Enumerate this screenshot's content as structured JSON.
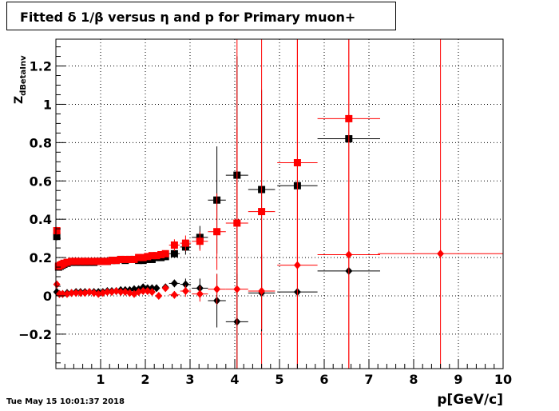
{
  "title": "Fitted δ 1/β versus η and p for Primary muon+",
  "timestamp": "Tue May 15 10:01:37 2018",
  "chart_data": {
    "type": "scatter",
    "title": "Fitted δ 1/β versus η and p for Primary muon+",
    "xlabel": "p[GeV/c]",
    "ylabel_main": "Z",
    "ylabel_sub": "dBetaInv",
    "xlim": [
      0.0,
      10.0
    ],
    "ylim": [
      -0.38,
      1.34
    ],
    "grid": true,
    "x_ticks": [
      1,
      2,
      3,
      4,
      5,
      6,
      7,
      8,
      9,
      10
    ],
    "x_tick_labels": [
      "1",
      "2",
      "3",
      "4",
      "5",
      "6",
      "7",
      "8",
      "9",
      "10"
    ],
    "y_ticks": [
      -0.2,
      0,
      0.2,
      0.4,
      0.6,
      0.8,
      1,
      1.2
    ],
    "y_tick_labels": [
      "−0.2",
      "0",
      "0.2",
      "0.4",
      "0.6",
      "0.8",
      "1",
      "1.2"
    ],
    "colors": {
      "black": "#000000",
      "red": "#ff0000"
    },
    "series": [
      {
        "marker": "square",
        "color": "#000000",
        "points": [
          {
            "x": 0.02,
            "y": 0.31,
            "ex": 0.02,
            "ey": 0.02
          },
          {
            "x": 0.06,
            "y": 0.15,
            "ex": 0.02,
            "ey": 0.01
          },
          {
            "x": 0.1,
            "y": 0.155,
            "ex": 0.02,
            "ey": 0.01
          },
          {
            "x": 0.14,
            "y": 0.16,
            "ex": 0.02,
            "ey": 0.01
          },
          {
            "x": 0.18,
            "y": 0.165,
            "ex": 0.02,
            "ey": 0.01
          },
          {
            "x": 0.25,
            "y": 0.17,
            "ex": 0.03,
            "ey": 0.01
          },
          {
            "x": 0.35,
            "y": 0.175,
            "ex": 0.05,
            "ey": 0.01
          },
          {
            "x": 0.45,
            "y": 0.175,
            "ex": 0.05,
            "ey": 0.01
          },
          {
            "x": 0.55,
            "y": 0.175,
            "ex": 0.05,
            "ey": 0.01
          },
          {
            "x": 0.65,
            "y": 0.175,
            "ex": 0.05,
            "ey": 0.01
          },
          {
            "x": 0.75,
            "y": 0.175,
            "ex": 0.05,
            "ey": 0.01
          },
          {
            "x": 0.85,
            "y": 0.175,
            "ex": 0.05,
            "ey": 0.01
          },
          {
            "x": 0.95,
            "y": 0.18,
            "ex": 0.05,
            "ey": 0.01
          },
          {
            "x": 1.05,
            "y": 0.18,
            "ex": 0.05,
            "ey": 0.01
          },
          {
            "x": 1.15,
            "y": 0.18,
            "ex": 0.05,
            "ey": 0.01
          },
          {
            "x": 1.25,
            "y": 0.185,
            "ex": 0.05,
            "ey": 0.01
          },
          {
            "x": 1.35,
            "y": 0.185,
            "ex": 0.05,
            "ey": 0.01
          },
          {
            "x": 1.45,
            "y": 0.19,
            "ex": 0.05,
            "ey": 0.01
          },
          {
            "x": 1.55,
            "y": 0.185,
            "ex": 0.05,
            "ey": 0.01
          },
          {
            "x": 1.65,
            "y": 0.19,
            "ex": 0.05,
            "ey": 0.01
          },
          {
            "x": 1.75,
            "y": 0.19,
            "ex": 0.05,
            "ey": 0.01
          },
          {
            "x": 1.85,
            "y": 0.185,
            "ex": 0.05,
            "ey": 0.01
          },
          {
            "x": 1.95,
            "y": 0.185,
            "ex": 0.05,
            "ey": 0.01
          },
          {
            "x": 2.05,
            "y": 0.19,
            "ex": 0.05,
            "ey": 0.01
          },
          {
            "x": 2.15,
            "y": 0.19,
            "ex": 0.05,
            "ey": 0.01
          },
          {
            "x": 2.25,
            "y": 0.2,
            "ex": 0.05,
            "ey": 0.01
          },
          {
            "x": 2.35,
            "y": 0.2,
            "ex": 0.05,
            "ey": 0.01
          },
          {
            "x": 2.45,
            "y": 0.205,
            "ex": 0.05,
            "ey": 0.01
          },
          {
            "x": 2.65,
            "y": 0.22,
            "ex": 0.12,
            "ey": 0.02
          },
          {
            "x": 2.9,
            "y": 0.255,
            "ex": 0.12,
            "ey": 0.04
          },
          {
            "x": 3.22,
            "y": 0.305,
            "ex": 0.18,
            "ey": 0.06
          },
          {
            "x": 3.6,
            "y": 0.5,
            "ex": 0.2,
            "ey": 0.28
          },
          {
            "x": 4.05,
            "y": 0.63,
            "ex": 0.25,
            "ey": 0.62
          },
          {
            "x": 4.6,
            "y": 0.555,
            "ex": 0.3,
            "ey": 0.52
          },
          {
            "x": 5.4,
            "y": 0.575,
            "ex": 0.45,
            "ey": 0.0
          },
          {
            "x": 6.55,
            "y": 0.82,
            "ex": 0.7,
            "ey": 0.0
          }
        ]
      },
      {
        "marker": "square",
        "color": "#ff0000",
        "points": [
          {
            "x": 0.02,
            "y": 0.34,
            "ex": 0.02,
            "ey": 0.02
          },
          {
            "x": 0.06,
            "y": 0.155,
            "ex": 0.02,
            "ey": 0.01
          },
          {
            "x": 0.1,
            "y": 0.16,
            "ex": 0.02,
            "ey": 0.01
          },
          {
            "x": 0.14,
            "y": 0.165,
            "ex": 0.02,
            "ey": 0.01
          },
          {
            "x": 0.18,
            "y": 0.17,
            "ex": 0.02,
            "ey": 0.01
          },
          {
            "x": 0.25,
            "y": 0.175,
            "ex": 0.03,
            "ey": 0.01
          },
          {
            "x": 0.35,
            "y": 0.18,
            "ex": 0.05,
            "ey": 0.01
          },
          {
            "x": 0.45,
            "y": 0.18,
            "ex": 0.05,
            "ey": 0.01
          },
          {
            "x": 0.55,
            "y": 0.18,
            "ex": 0.05,
            "ey": 0.01
          },
          {
            "x": 0.65,
            "y": 0.18,
            "ex": 0.05,
            "ey": 0.01
          },
          {
            "x": 0.75,
            "y": 0.18,
            "ex": 0.05,
            "ey": 0.01
          },
          {
            "x": 0.85,
            "y": 0.18,
            "ex": 0.05,
            "ey": 0.01
          },
          {
            "x": 0.95,
            "y": 0.18,
            "ex": 0.05,
            "ey": 0.01
          },
          {
            "x": 1.05,
            "y": 0.18,
            "ex": 0.05,
            "ey": 0.01
          },
          {
            "x": 1.15,
            "y": 0.18,
            "ex": 0.05,
            "ey": 0.01
          },
          {
            "x": 1.25,
            "y": 0.185,
            "ex": 0.05,
            "ey": 0.01
          },
          {
            "x": 1.35,
            "y": 0.185,
            "ex": 0.05,
            "ey": 0.01
          },
          {
            "x": 1.45,
            "y": 0.19,
            "ex": 0.05,
            "ey": 0.01
          },
          {
            "x": 1.55,
            "y": 0.19,
            "ex": 0.05,
            "ey": 0.01
          },
          {
            "x": 1.65,
            "y": 0.19,
            "ex": 0.05,
            "ey": 0.01
          },
          {
            "x": 1.75,
            "y": 0.19,
            "ex": 0.05,
            "ey": 0.01
          },
          {
            "x": 1.85,
            "y": 0.2,
            "ex": 0.05,
            "ey": 0.01
          },
          {
            "x": 1.95,
            "y": 0.2,
            "ex": 0.05,
            "ey": 0.01
          },
          {
            "x": 2.05,
            "y": 0.205,
            "ex": 0.05,
            "ey": 0.01
          },
          {
            "x": 2.15,
            "y": 0.21,
            "ex": 0.05,
            "ey": 0.01
          },
          {
            "x": 2.25,
            "y": 0.21,
            "ex": 0.05,
            "ey": 0.01
          },
          {
            "x": 2.35,
            "y": 0.215,
            "ex": 0.05,
            "ey": 0.01
          },
          {
            "x": 2.45,
            "y": 0.22,
            "ex": 0.05,
            "ey": 0.01
          },
          {
            "x": 2.65,
            "y": 0.265,
            "ex": 0.12,
            "ey": 0.03
          },
          {
            "x": 2.9,
            "y": 0.275,
            "ex": 0.12,
            "ey": 0.04
          },
          {
            "x": 3.22,
            "y": 0.285,
            "ex": 0.18,
            "ey": 0.05
          },
          {
            "x": 3.6,
            "y": 0.335,
            "ex": 0.2,
            "ey": 0.2
          },
          {
            "x": 4.05,
            "y": 0.38,
            "ex": 0.25,
            "ey": 0.5
          },
          {
            "x": 4.6,
            "y": 0.44,
            "ex": 0.3,
            "ey": 1.0
          },
          {
            "x": 5.4,
            "y": 0.695,
            "ex": 0.45,
            "ey": 2.0
          },
          {
            "x": 6.55,
            "y": 0.925,
            "ex": 0.7,
            "ey": 2.0
          }
        ]
      },
      {
        "marker": "diamond",
        "color": "#000000",
        "points": [
          {
            "x": 0.02,
            "y": 0.02,
            "ex": 0.02,
            "ey": 0.01
          },
          {
            "x": 0.08,
            "y": 0.01,
            "ex": 0.02,
            "ey": 0.01
          },
          {
            "x": 0.15,
            "y": 0.01,
            "ex": 0.03,
            "ey": 0.01
          },
          {
            "x": 0.25,
            "y": 0.015,
            "ex": 0.05,
            "ey": 0.01
          },
          {
            "x": 0.35,
            "y": 0.015,
            "ex": 0.05,
            "ey": 0.01
          },
          {
            "x": 0.45,
            "y": 0.02,
            "ex": 0.05,
            "ey": 0.01
          },
          {
            "x": 0.55,
            "y": 0.02,
            "ex": 0.05,
            "ey": 0.01
          },
          {
            "x": 0.65,
            "y": 0.02,
            "ex": 0.05,
            "ey": 0.01
          },
          {
            "x": 0.75,
            "y": 0.02,
            "ex": 0.05,
            "ey": 0.01
          },
          {
            "x": 0.85,
            "y": 0.02,
            "ex": 0.05,
            "ey": 0.01
          },
          {
            "x": 0.95,
            "y": 0.02,
            "ex": 0.05,
            "ey": 0.01
          },
          {
            "x": 1.05,
            "y": 0.02,
            "ex": 0.05,
            "ey": 0.01
          },
          {
            "x": 1.15,
            "y": 0.025,
            "ex": 0.05,
            "ey": 0.01
          },
          {
            "x": 1.25,
            "y": 0.025,
            "ex": 0.05,
            "ey": 0.01
          },
          {
            "x": 1.35,
            "y": 0.025,
            "ex": 0.05,
            "ey": 0.01
          },
          {
            "x": 1.45,
            "y": 0.03,
            "ex": 0.05,
            "ey": 0.01
          },
          {
            "x": 1.55,
            "y": 0.03,
            "ex": 0.05,
            "ey": 0.01
          },
          {
            "x": 1.65,
            "y": 0.03,
            "ex": 0.05,
            "ey": 0.01
          },
          {
            "x": 1.75,
            "y": 0.035,
            "ex": 0.05,
            "ey": 0.01
          },
          {
            "x": 1.85,
            "y": 0.035,
            "ex": 0.05,
            "ey": 0.01
          },
          {
            "x": 1.95,
            "y": 0.045,
            "ex": 0.05,
            "ey": 0.01
          },
          {
            "x": 2.05,
            "y": 0.04,
            "ex": 0.05,
            "ey": 0.01
          },
          {
            "x": 2.15,
            "y": 0.04,
            "ex": 0.05,
            "ey": 0.01
          },
          {
            "x": 2.25,
            "y": 0.04,
            "ex": 0.05,
            "ey": 0.01
          },
          {
            "x": 2.45,
            "y": 0.045,
            "ex": 0.05,
            "ey": 0.01
          },
          {
            "x": 2.65,
            "y": 0.065,
            "ex": 0.12,
            "ey": 0.02
          },
          {
            "x": 2.9,
            "y": 0.06,
            "ex": 0.12,
            "ey": 0.03
          },
          {
            "x": 3.22,
            "y": 0.04,
            "ex": 0.18,
            "ey": 0.05
          },
          {
            "x": 3.6,
            "y": -0.025,
            "ex": 0.2,
            "ey": 0.14
          },
          {
            "x": 4.05,
            "y": -0.135,
            "ex": 0.25,
            "ey": 0.25
          },
          {
            "x": 4.6,
            "y": 0.015,
            "ex": 0.3,
            "ey": 0.2
          },
          {
            "x": 5.4,
            "y": 0.02,
            "ex": 0.45,
            "ey": 0.0
          },
          {
            "x": 6.55,
            "y": 0.13,
            "ex": 0.7,
            "ey": 0.0
          }
        ]
      },
      {
        "marker": "diamond",
        "color": "#ff0000",
        "points": [
          {
            "x": 0.02,
            "y": 0.06,
            "ex": 0.02,
            "ey": 0.01
          },
          {
            "x": 0.08,
            "y": 0.01,
            "ex": 0.02,
            "ey": 0.01
          },
          {
            "x": 0.15,
            "y": 0.01,
            "ex": 0.03,
            "ey": 0.01
          },
          {
            "x": 0.25,
            "y": 0.01,
            "ex": 0.05,
            "ey": 0.01
          },
          {
            "x": 0.35,
            "y": 0.015,
            "ex": 0.05,
            "ey": 0.01
          },
          {
            "x": 0.45,
            "y": 0.015,
            "ex": 0.05,
            "ey": 0.01
          },
          {
            "x": 0.55,
            "y": 0.015,
            "ex": 0.05,
            "ey": 0.01
          },
          {
            "x": 0.65,
            "y": 0.015,
            "ex": 0.05,
            "ey": 0.01
          },
          {
            "x": 0.75,
            "y": 0.02,
            "ex": 0.05,
            "ey": 0.01
          },
          {
            "x": 0.85,
            "y": 0.015,
            "ex": 0.05,
            "ey": 0.01
          },
          {
            "x": 0.95,
            "y": 0.01,
            "ex": 0.05,
            "ey": 0.01
          },
          {
            "x": 1.05,
            "y": 0.015,
            "ex": 0.05,
            "ey": 0.01
          },
          {
            "x": 1.15,
            "y": 0.02,
            "ex": 0.05,
            "ey": 0.01
          },
          {
            "x": 1.25,
            "y": 0.02,
            "ex": 0.05,
            "ey": 0.01
          },
          {
            "x": 1.35,
            "y": 0.025,
            "ex": 0.05,
            "ey": 0.01
          },
          {
            "x": 1.45,
            "y": 0.02,
            "ex": 0.05,
            "ey": 0.01
          },
          {
            "x": 1.55,
            "y": 0.02,
            "ex": 0.05,
            "ey": 0.01
          },
          {
            "x": 1.65,
            "y": 0.015,
            "ex": 0.05,
            "ey": 0.01
          },
          {
            "x": 1.75,
            "y": 0.01,
            "ex": 0.05,
            "ey": 0.01
          },
          {
            "x": 1.85,
            "y": 0.02,
            "ex": 0.05,
            "ey": 0.01
          },
          {
            "x": 1.95,
            "y": 0.025,
            "ex": 0.05,
            "ey": 0.01
          },
          {
            "x": 2.05,
            "y": 0.025,
            "ex": 0.05,
            "ey": 0.01
          },
          {
            "x": 2.15,
            "y": 0.02,
            "ex": 0.05,
            "ey": 0.01
          },
          {
            "x": 2.3,
            "y": 0.0,
            "ex": 0.05,
            "ey": 0.01
          },
          {
            "x": 2.45,
            "y": 0.04,
            "ex": 0.05,
            "ey": 0.01
          },
          {
            "x": 2.65,
            "y": 0.005,
            "ex": 0.12,
            "ey": 0.02
          },
          {
            "x": 2.9,
            "y": 0.025,
            "ex": 0.12,
            "ey": 0.03
          },
          {
            "x": 3.22,
            "y": 0.01,
            "ex": 0.18,
            "ey": 0.04
          },
          {
            "x": 3.6,
            "y": 0.035,
            "ex": 0.2,
            "ey": 0.08
          },
          {
            "x": 4.05,
            "y": 0.035,
            "ex": 0.25,
            "ey": 2.0
          },
          {
            "x": 4.6,
            "y": 0.025,
            "ex": 0.3,
            "ey": 0.2
          },
          {
            "x": 5.4,
            "y": 0.16,
            "ex": 0.45,
            "ey": 2.0
          },
          {
            "x": 6.55,
            "y": 0.215,
            "ex": 0.7,
            "ey": 2.0
          },
          {
            "x": 8.6,
            "y": 0.22,
            "ex": 1.4,
            "ey": 2.0
          }
        ]
      }
    ]
  }
}
